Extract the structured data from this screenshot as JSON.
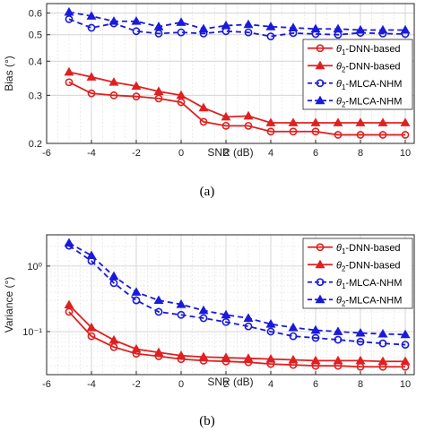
{
  "chart_data": [
    {
      "type": "line",
      "panel_label": "(a)",
      "xlabel": "SNR (dB)",
      "ylabel": "Bias (°)",
      "yscale": "log",
      "xlim": [
        -6,
        10.4
      ],
      "ylim": [
        0.2,
        0.65
      ],
      "xticks": [
        -6,
        -4,
        -2,
        0,
        2,
        4,
        6,
        8,
        10
      ],
      "yticks": [
        0.2,
        0.3,
        0.4,
        0.5,
        0.6
      ],
      "ytick_labels": [
        "0.2",
        "0.3",
        "0.4",
        "0.5",
        "0.6"
      ],
      "grid": true,
      "legend_position": "middle-right",
      "x": [
        -5,
        -4,
        -3,
        -2,
        -1,
        0,
        1,
        2,
        3,
        4,
        5,
        6,
        7,
        8,
        9,
        10
      ],
      "series": [
        {
          "name_prefix": "θ",
          "name_sub": "1",
          "name_suffix": "-DNN-based",
          "color": "#e02020",
          "marker": "circle",
          "dash": "solid",
          "values": [
            0.335,
            0.305,
            0.3,
            0.297,
            0.292,
            0.283,
            0.24,
            0.232,
            0.232,
            0.221,
            0.221,
            0.221,
            0.215,
            0.215,
            0.215,
            0.215
          ]
        },
        {
          "name_prefix": "θ",
          "name_sub": "2",
          "name_suffix": "-DNN-based",
          "color": "#e02020",
          "marker": "triangle",
          "dash": "solid",
          "values": [
            0.365,
            0.35,
            0.335,
            0.324,
            0.31,
            0.3,
            0.27,
            0.25,
            0.252,
            0.238,
            0.238,
            0.238,
            0.238,
            0.238,
            0.238,
            0.238
          ]
        },
        {
          "name_prefix": "θ",
          "name_sub": "1",
          "name_suffix": "-MLCA-NHM",
          "color": "#1a1adb",
          "marker": "circle",
          "dash": "dashed",
          "values": [
            0.57,
            0.53,
            0.55,
            0.515,
            0.505,
            0.51,
            0.505,
            0.515,
            0.51,
            0.493,
            0.507,
            0.503,
            0.5,
            0.508,
            0.505,
            0.503
          ]
        },
        {
          "name_prefix": "θ",
          "name_sub": "2",
          "name_suffix": "-MLCA-NHM",
          "color": "#1a1adb",
          "marker": "triangle",
          "dash": "dashed",
          "values": [
            0.605,
            0.585,
            0.56,
            0.56,
            0.535,
            0.555,
            0.525,
            0.54,
            0.545,
            0.535,
            0.53,
            0.525,
            0.525,
            0.52,
            0.52,
            0.52
          ]
        }
      ]
    },
    {
      "type": "line",
      "panel_label": "(b)",
      "xlabel": "SNR (dB)",
      "ylabel": "Variance (°)",
      "yscale": "log",
      "xlim": [
        -6,
        10.4
      ],
      "ylim": [
        0.022,
        3.0
      ],
      "xticks": [
        -6,
        -4,
        -2,
        0,
        2,
        4,
        6,
        8,
        10
      ],
      "yticks": [
        0.1,
        1
      ],
      "ytick_labels": [
        "10⁻¹",
        "10⁰"
      ],
      "grid": true,
      "legend_position": "top-right",
      "x": [
        -5,
        -4,
        -3,
        -2,
        -1,
        0,
        1,
        2,
        3,
        4,
        5,
        6,
        7,
        8,
        9,
        10
      ],
      "series": [
        {
          "name_prefix": "θ",
          "name_sub": "1",
          "name_suffix": "-DNN-based",
          "color": "#e02020",
          "marker": "circle",
          "dash": "solid",
          "values": [
            0.2,
            0.085,
            0.058,
            0.046,
            0.042,
            0.038,
            0.036,
            0.035,
            0.034,
            0.032,
            0.031,
            0.03,
            0.03,
            0.029,
            0.029,
            0.029
          ]
        },
        {
          "name_prefix": "θ",
          "name_sub": "2",
          "name_suffix": "-DNN-based",
          "color": "#e02020",
          "marker": "triangle",
          "dash": "solid",
          "values": [
            0.255,
            0.115,
            0.074,
            0.054,
            0.048,
            0.043,
            0.041,
            0.04,
            0.039,
            0.038,
            0.037,
            0.036,
            0.036,
            0.036,
            0.035,
            0.035
          ]
        },
        {
          "name_prefix": "θ",
          "name_sub": "1",
          "name_suffix": "-MLCA-NHM",
          "color": "#1a1adb",
          "marker": "circle",
          "dash": "dashed",
          "values": [
            2.05,
            1.2,
            0.55,
            0.3,
            0.2,
            0.18,
            0.16,
            0.14,
            0.12,
            0.1,
            0.085,
            0.08,
            0.075,
            0.07,
            0.066,
            0.063
          ]
        },
        {
          "name_prefix": "θ",
          "name_sub": "2",
          "name_suffix": "-MLCA-NHM",
          "color": "#1a1adb",
          "marker": "triangle",
          "dash": "dashed",
          "values": [
            2.25,
            1.45,
            0.7,
            0.4,
            0.3,
            0.26,
            0.21,
            0.18,
            0.16,
            0.13,
            0.115,
            0.105,
            0.1,
            0.095,
            0.092,
            0.09
          ]
        }
      ]
    }
  ]
}
